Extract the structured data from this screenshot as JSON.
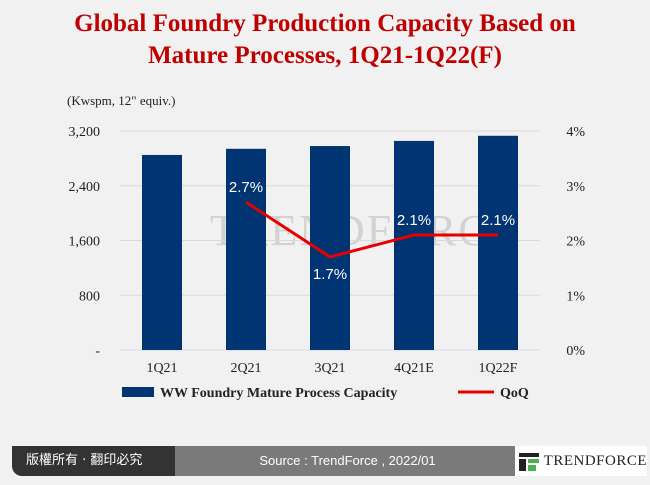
{
  "title_line1": "Global Foundry Production Capacity Based on",
  "title_line2": "Mature Processes, 1Q21-1Q22(F)",
  "watermark": "TRENDFORCE",
  "footer": {
    "copyright": "版權所有 · 翻印必究",
    "source": "Source : TrendForce , 2022/01",
    "logo_text": "TRENDFORCE"
  },
  "chart_data": {
    "type": "bar+line",
    "ylabel": "(Kwspm, 12\" equiv.)",
    "categories": [
      "1Q21",
      "2Q21",
      "3Q21",
      "4Q21E",
      "1Q22F"
    ],
    "y_ticks": [
      "-",
      "800",
      "1,600",
      "2,400",
      "3,200"
    ],
    "y2_ticks": [
      "0%",
      "1%",
      "2%",
      "3%",
      "4%"
    ],
    "ylim": [
      0,
      3200
    ],
    "y2lim": [
      0,
      4
    ],
    "grid": true,
    "legend": "bottom",
    "series": [
      {
        "name": "WW Foundry Mature Process Capacity",
        "type": "bar",
        "axis": "left",
        "color": "#003473",
        "values": [
          2850,
          2940,
          2980,
          3055,
          3130
        ]
      },
      {
        "name": "QoQ",
        "type": "line",
        "axis": "right",
        "color": "#e60000",
        "values": [
          null,
          2.7,
          1.7,
          2.1,
          2.1
        ],
        "labels": [
          "",
          "2.7%",
          "1.7%",
          "2.1%",
          "2.1%"
        ]
      }
    ]
  }
}
